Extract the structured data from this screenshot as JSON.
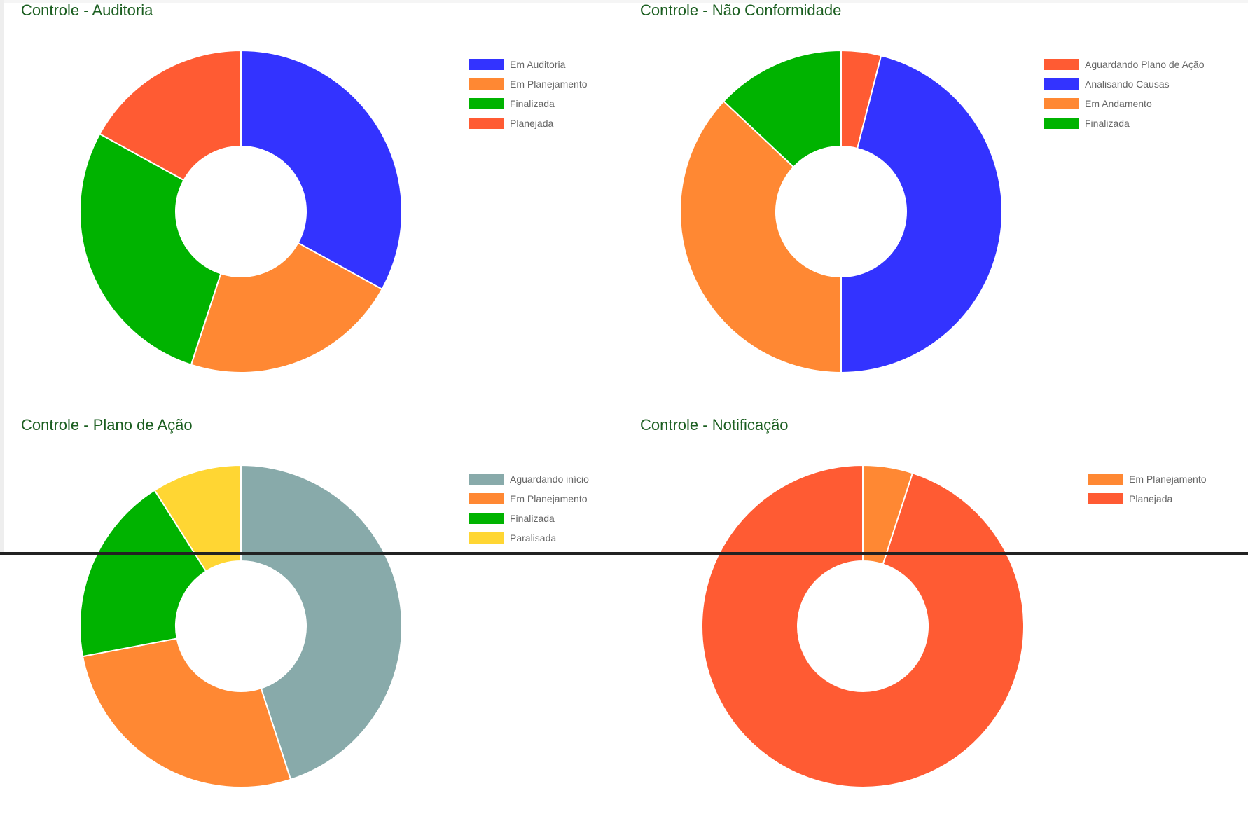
{
  "chart_data": [
    {
      "type": "pie",
      "title": "Controle - Auditoria",
      "legend": "right",
      "categories": [
        "Em Auditoria",
        "Em Planejamento",
        "Finalizada",
        "Planejada"
      ],
      "values": [
        33,
        22,
        28,
        17
      ],
      "colors": [
        "#3333ff",
        "#ff8833",
        "#00b300",
        "#ff5b33"
      ]
    },
    {
      "type": "pie",
      "title": "Controle - Não Conformidade",
      "legend": "right",
      "categories": [
        "Aguardando Plano de Ação",
        "Analisando Causas",
        "Em Andamento",
        "Finalizada"
      ],
      "values": [
        4,
        46,
        37,
        13
      ],
      "colors": [
        "#ff5b33",
        "#3333ff",
        "#ff8833",
        "#00b300"
      ]
    },
    {
      "type": "pie",
      "title": "Controle - Plano de Ação",
      "legend": "right",
      "categories": [
        "Aguardando início",
        "Em Planejamento",
        "Finalizada",
        "Paralisada"
      ],
      "values": [
        45,
        27,
        19,
        9
      ],
      "colors": [
        "#88aaaa",
        "#ff8833",
        "#00b300",
        "#ffd633"
      ]
    },
    {
      "type": "pie",
      "title": "Controle - Notificação",
      "legend": "right",
      "categories": [
        "Em Planejamento",
        "Planejada"
      ],
      "values": [
        5,
        95
      ],
      "colors": [
        "#ff8833",
        "#ff5b33"
      ]
    }
  ]
}
